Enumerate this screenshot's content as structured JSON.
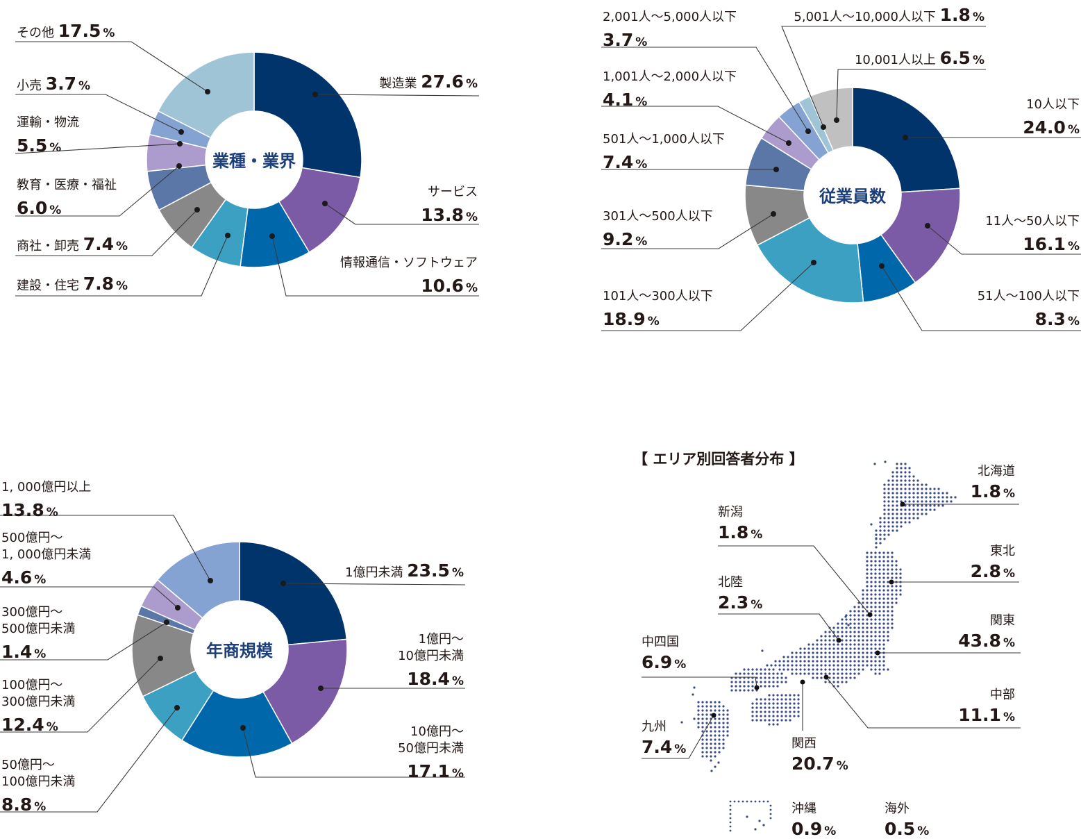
{
  "chart_data": [
    {
      "type": "pie",
      "title": "業種・業界",
      "unit": "%",
      "series": [
        {
          "name": "製造業",
          "value": 27.6,
          "color": "#00346b"
        },
        {
          "name": "サービス",
          "value": 13.8,
          "color": "#7b5aa6"
        },
        {
          "name": "情報通信・ソフトウェア",
          "value": 10.6,
          "color": "#0068aa"
        },
        {
          "name": "建設・住宅",
          "value": 7.8,
          "color": "#3ba0c1"
        },
        {
          "name": "商社・卸売",
          "value": 7.4,
          "color": "#888888"
        },
        {
          "name": "教育・医療・福祉",
          "value": 6.0,
          "color": "#5a77a8"
        },
        {
          "name": "運輸・物流",
          "value": 5.5,
          "color": "#ab9ccd"
        },
        {
          "name": "小売",
          "value": 3.7,
          "color": "#84a2d2"
        },
        {
          "name": "その他",
          "value": 17.5,
          "color": "#9fc4d6"
        }
      ]
    },
    {
      "type": "pie",
      "title": "従業員数",
      "unit": "%",
      "series": [
        {
          "name": "10人以下",
          "value": 24.0,
          "color": "#00346b"
        },
        {
          "name": "11人〜50人以下",
          "value": 16.1,
          "color": "#7b5aa6"
        },
        {
          "name": "51人〜100人以下",
          "value": 8.3,
          "color": "#0068aa"
        },
        {
          "name": "101人〜300人以下",
          "value": 18.9,
          "color": "#3ba0c1"
        },
        {
          "name": "301人〜500人以下",
          "value": 9.2,
          "color": "#888888"
        },
        {
          "name": "501人〜1,000人以下",
          "value": 7.4,
          "color": "#5a77a8"
        },
        {
          "name": "1,001人〜2,000人以下",
          "value": 4.1,
          "color": "#ab9ccd"
        },
        {
          "name": "2,001人〜5,000人以下",
          "value": 3.7,
          "color": "#84a2d2"
        },
        {
          "name": "5,001人〜10,000人以下",
          "value": 1.8,
          "color": "#9fc4d6"
        },
        {
          "name": "10,001人以上",
          "value": 6.5,
          "color": "#c0c0c0"
        }
      ]
    },
    {
      "type": "pie",
      "title": "年商規模",
      "unit": "%",
      "series": [
        {
          "name": "1億円未満",
          "value": 23.5,
          "color": "#00346b"
        },
        {
          "name": "1億円〜10億円未満",
          "value": 18.4,
          "color": "#7b5aa6"
        },
        {
          "name": "10億円〜50億円未満",
          "value": 17.1,
          "color": "#0068aa"
        },
        {
          "name": "50億円〜100億円未満",
          "value": 8.8,
          "color": "#3ba0c1"
        },
        {
          "name": "100億円〜300億円未満",
          "value": 12.4,
          "color": "#888888"
        },
        {
          "name": "300億円〜500億円未満",
          "value": 1.4,
          "color": "#5a77a8"
        },
        {
          "name": "500億円〜1,000億円未満",
          "value": 4.6,
          "color": "#ab9ccd"
        },
        {
          "name": "1,000億円以上",
          "value": 13.8,
          "color": "#84a2d2"
        }
      ]
    }
  ],
  "donut_texts": [
    {
      "center": "業種・業界",
      "labels": [
        [
          "製造業 ",
          "27.6"
        ],
        [
          "サービス",
          "13.8"
        ],
        [
          "情報通信・ソフトウェア",
          "10.6"
        ],
        [
          "建設・住宅 ",
          "7.8"
        ],
        [
          "商社・卸売 ",
          "7.4"
        ],
        [
          "教育・医療・福祉",
          "6.0"
        ],
        [
          "運輸・物流",
          "5.5"
        ],
        [
          "小売 ",
          "3.7"
        ],
        [
          "その他 ",
          "17.5"
        ]
      ]
    },
    {
      "center": "従業員数",
      "labels": [
        [
          "10人以下",
          "24.0"
        ],
        [
          "11人〜50人以下",
          "16.1"
        ],
        [
          "51人〜100人以下",
          "8.3"
        ],
        [
          "101人〜300人以下",
          "18.9"
        ],
        [
          "301人〜500人以下",
          "9.2"
        ],
        [
          "501人〜1,000人以下",
          "7.4"
        ],
        [
          "1,001人〜2,000人以下",
          "4.1"
        ],
        [
          "2,001人〜5,000人以下",
          "3.7"
        ],
        [
          "5,001人〜10,000人以下 ",
          "1.8"
        ],
        [
          "10,001人以上 ",
          "6.5"
        ]
      ]
    },
    {
      "center": "年商規模",
      "labels": [
        [
          "1億円未満 ",
          "23.5"
        ],
        [
          "1億円〜",
          "10億円未満",
          "18.4"
        ],
        [
          "10億円〜",
          "50億円未満",
          "17.1"
        ],
        [
          "50億円〜",
          "100億円未満",
          "8.8"
        ],
        [
          "100億円〜",
          "300億円未満",
          "12.4"
        ],
        [
          "300億円〜",
          "500億円未満",
          "1.4"
        ],
        [
          "500億円〜",
          "1, 000億円未満",
          "4.6"
        ],
        [
          "1, 000億円以上",
          "13.8"
        ]
      ]
    }
  ],
  "percent_sign": "%",
  "area_map": {
    "title": "【 エリア別回答者分布 】",
    "regions": [
      {
        "name": "北海道",
        "value": "1.8"
      },
      {
        "name": "東北",
        "value": "2.8"
      },
      {
        "name": "関東",
        "value": "43.8"
      },
      {
        "name": "中部",
        "value": "11.1"
      },
      {
        "name": "関西",
        "value": "20.7"
      },
      {
        "name": "中四国",
        "value": "6.9"
      },
      {
        "name": "九州",
        "value": "7.4"
      },
      {
        "name": "北陸",
        "value": "2.3"
      },
      {
        "name": "新潟",
        "value": "1.8"
      },
      {
        "name": "沖縄",
        "value": "0.9"
      },
      {
        "name": "海外",
        "value": "0.5"
      }
    ]
  }
}
